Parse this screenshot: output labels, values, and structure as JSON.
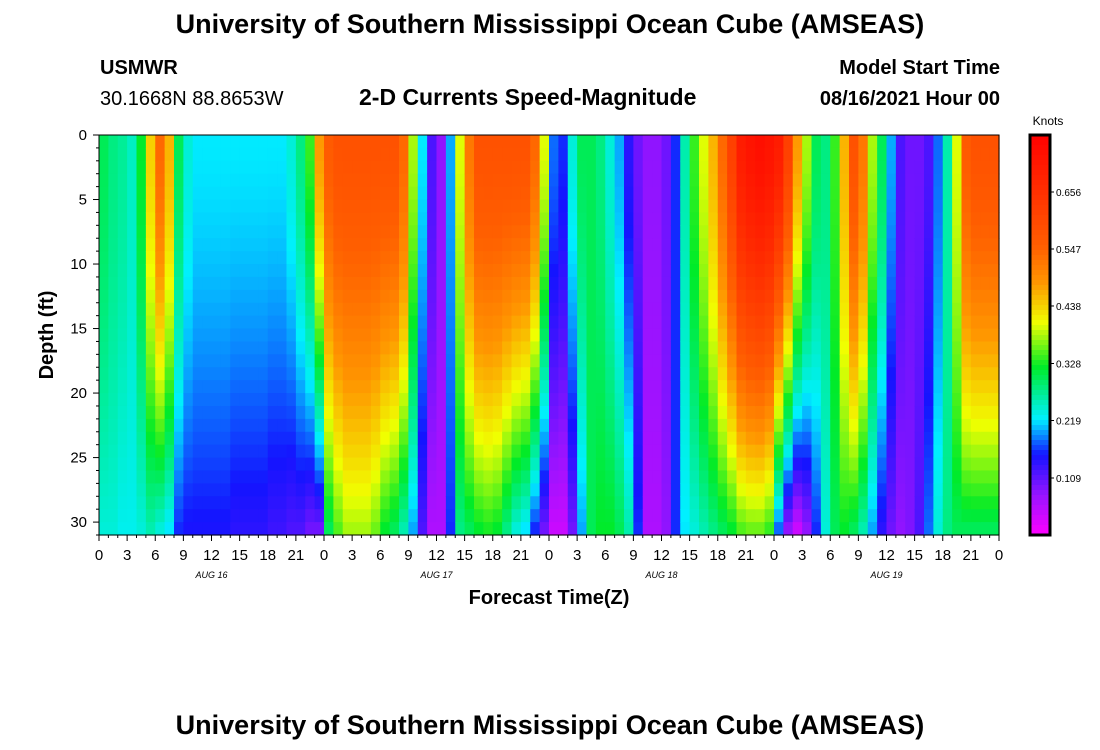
{
  "header": {
    "title_top": "University of Southern Mississippi Ocean Cube (AMSEAS)",
    "title_bottom": "University of Southern Mississippi Ocean Cube (AMSEAS)",
    "station": "USMWR",
    "coords": "30.1668N  88.8653W",
    "plot_title": "2-D Currents Speed-Magnitude",
    "start_label": "Model Start Time",
    "start_value": "08/16/2021 Hour 00"
  },
  "chart_data": {
    "type": "heatmap",
    "title": "2-D Currents Speed-Magnitude",
    "xlabel": "Forecast Time(Z)",
    "ylabel": "Depth (ft)",
    "units": "Knots",
    "x_ticks": [
      "0",
      "3",
      "6",
      "9",
      "12",
      "15",
      "18",
      "21",
      "0",
      "3",
      "6",
      "9",
      "12",
      "15",
      "18",
      "21",
      "0",
      "3",
      "6",
      "9",
      "12",
      "15",
      "18",
      "21",
      "0",
      "3",
      "6",
      "9",
      "12",
      "15",
      "18",
      "21",
      "0"
    ],
    "day_labels": [
      "AUG 16",
      "AUG 17",
      "AUG 18",
      "AUG 19"
    ],
    "y_ticks": [
      0,
      5,
      10,
      15,
      20,
      25,
      30
    ],
    "ylim": [
      0,
      31
    ],
    "xlim_hours": [
      0,
      96
    ],
    "colorbar_ticks": [
      "0.656",
      "0.547",
      "0.438",
      "0.328",
      "0.219",
      "0.109"
    ],
    "colorbar_range": [
      0.0,
      0.765
    ],
    "columns_hours": [
      0,
      1,
      2,
      3,
      4,
      5,
      6,
      7,
      8,
      9,
      10,
      11,
      12,
      13,
      14,
      15,
      16,
      17,
      18,
      19,
      20,
      21,
      22,
      23,
      24,
      25,
      26,
      27,
      28,
      29,
      30,
      31,
      32,
      33,
      34,
      35,
      36,
      37,
      38,
      39,
      40,
      41,
      42,
      43,
      44,
      45,
      46,
      47,
      48,
      49,
      50,
      51,
      52,
      53,
      54,
      55,
      56,
      57,
      58,
      59,
      60,
      61,
      62,
      63,
      64,
      65,
      66,
      67,
      68,
      69,
      70,
      71,
      72,
      73,
      74,
      75,
      76,
      77,
      78,
      79,
      80,
      81,
      82,
      83,
      84,
      85,
      86,
      87,
      88,
      89,
      90,
      91,
      92,
      93,
      94,
      95
    ],
    "surface_speed": [
      0.3,
      0.28,
      0.27,
      0.25,
      0.32,
      0.44,
      0.54,
      0.46,
      0.3,
      0.24,
      0.22,
      0.22,
      0.22,
      0.22,
      0.22,
      0.22,
      0.22,
      0.22,
      0.22,
      0.22,
      0.24,
      0.28,
      0.34,
      0.48,
      0.56,
      0.58,
      0.58,
      0.58,
      0.58,
      0.58,
      0.58,
      0.58,
      0.54,
      0.38,
      0.22,
      0.12,
      0.08,
      0.2,
      0.4,
      0.52,
      0.58,
      0.58,
      0.58,
      0.58,
      0.58,
      0.58,
      0.54,
      0.4,
      0.18,
      0.16,
      0.24,
      0.3,
      0.3,
      0.28,
      0.24,
      0.2,
      0.14,
      0.1,
      0.08,
      0.08,
      0.1,
      0.16,
      0.26,
      0.34,
      0.4,
      0.46,
      0.54,
      0.62,
      0.7,
      0.72,
      0.73,
      0.72,
      0.7,
      0.62,
      0.48,
      0.38,
      0.3,
      0.28,
      0.34,
      0.46,
      0.58,
      0.52,
      0.38,
      0.3,
      0.2,
      0.12,
      0.1,
      0.1,
      0.12,
      0.18,
      0.26,
      0.4,
      0.56,
      0.58,
      0.58,
      0.58
    ],
    "bottom_speed": [
      0.24,
      0.24,
      0.23,
      0.23,
      0.24,
      0.26,
      0.24,
      0.22,
      0.16,
      0.15,
      0.15,
      0.15,
      0.15,
      0.15,
      0.14,
      0.14,
      0.14,
      0.14,
      0.13,
      0.13,
      0.12,
      0.12,
      0.1,
      0.1,
      0.3,
      0.35,
      0.38,
      0.38,
      0.38,
      0.36,
      0.32,
      0.3,
      0.26,
      0.2,
      0.12,
      0.06,
      0.06,
      0.16,
      0.28,
      0.3,
      0.32,
      0.33,
      0.32,
      0.28,
      0.24,
      0.22,
      0.16,
      0.1,
      0.04,
      0.04,
      0.1,
      0.2,
      0.3,
      0.32,
      0.32,
      0.3,
      0.26,
      0.16,
      0.06,
      0.06,
      0.08,
      0.16,
      0.22,
      0.24,
      0.26,
      0.28,
      0.3,
      0.32,
      0.35,
      0.36,
      0.36,
      0.34,
      0.18,
      0.08,
      0.04,
      0.08,
      0.16,
      0.24,
      0.3,
      0.32,
      0.3,
      0.26,
      0.2,
      0.14,
      0.1,
      0.08,
      0.09,
      0.12,
      0.18,
      0.24,
      0.28,
      0.3,
      0.3,
      0.3,
      0.3,
      0.3
    ]
  }
}
